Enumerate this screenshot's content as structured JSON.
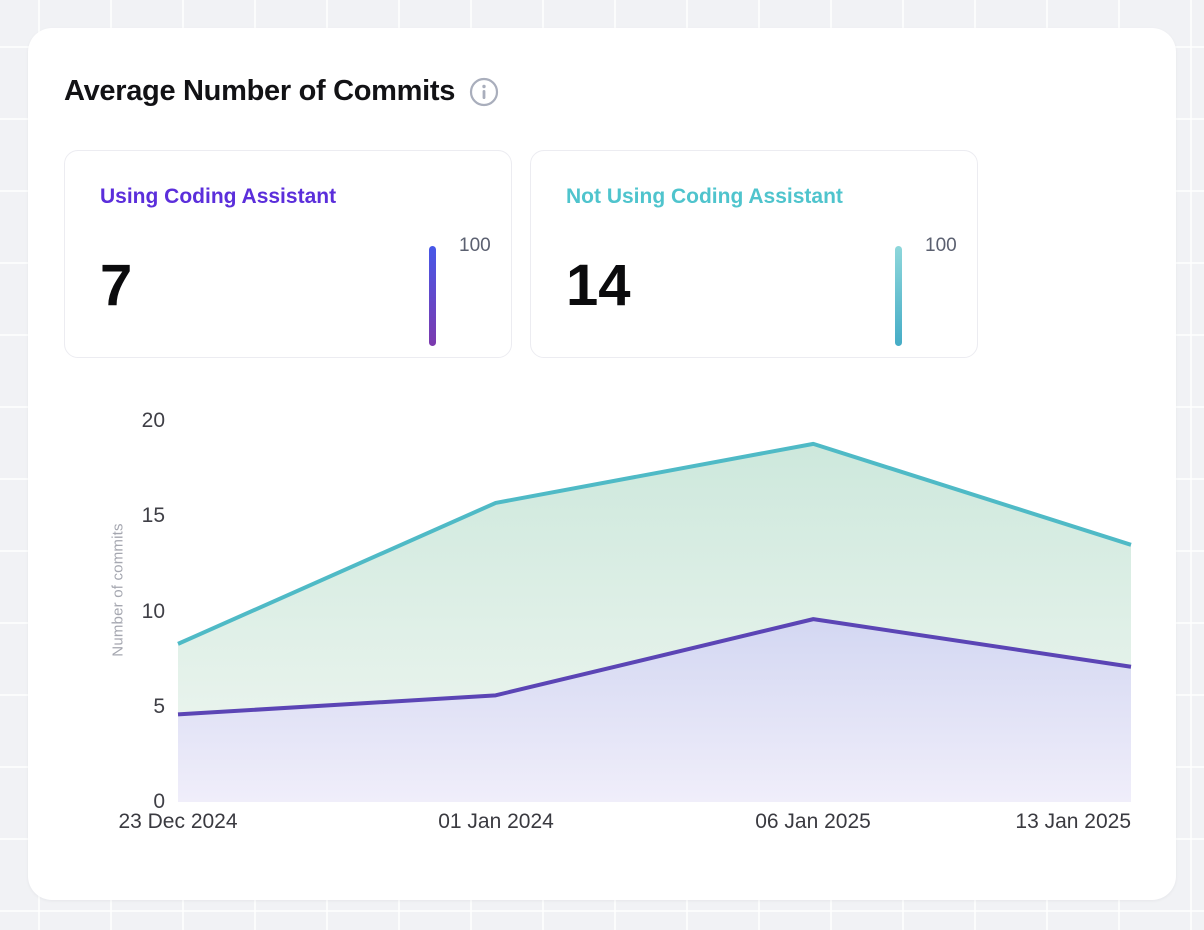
{
  "header": {
    "title": "Average Number of Commits",
    "info_icon": "info-circle"
  },
  "stats": [
    {
      "label": "Using Coding Assistant",
      "value": "7",
      "scale_max": "100",
      "accent": "#5B2EDB",
      "bar_from": "#4758E8",
      "bar_to": "#7C3AAE"
    },
    {
      "label": "Not Using Coding Assistant",
      "value": "14",
      "scale_max": "100",
      "accent": "#4FC4CD",
      "bar_from": "#8ED7DB",
      "bar_to": "#45ACC6"
    }
  ],
  "chart_data": {
    "type": "area",
    "title": "Average Number of Commits",
    "categories": [
      "23 Dec 2024",
      "01 Jan 2024",
      "06 Jan 2025",
      "13 Jan 2025"
    ],
    "series": [
      {
        "name": "not-using-coding-assistant",
        "label": "Not Using Coding Assistant",
        "values": [
          8.3,
          15.7,
          18.8,
          13.5
        ],
        "color": "#4FBAC6",
        "fill_from": "#CDE8DC",
        "fill_to": "#F1F7F2"
      },
      {
        "name": "using-coding-assistant",
        "label": "Using Coding Assistant",
        "values": [
          4.6,
          5.6,
          9.6,
          7.1
        ],
        "color": "#5B45B5",
        "fill_from": "#D3D7F2",
        "fill_to": "#F0EEFA"
      }
    ],
    "xlabel": "",
    "ylabel": "Number of commits",
    "yticks": [
      20,
      15,
      10,
      5,
      0
    ],
    "ylim": [
      0,
      20
    ],
    "grid": false,
    "legend": "none"
  }
}
